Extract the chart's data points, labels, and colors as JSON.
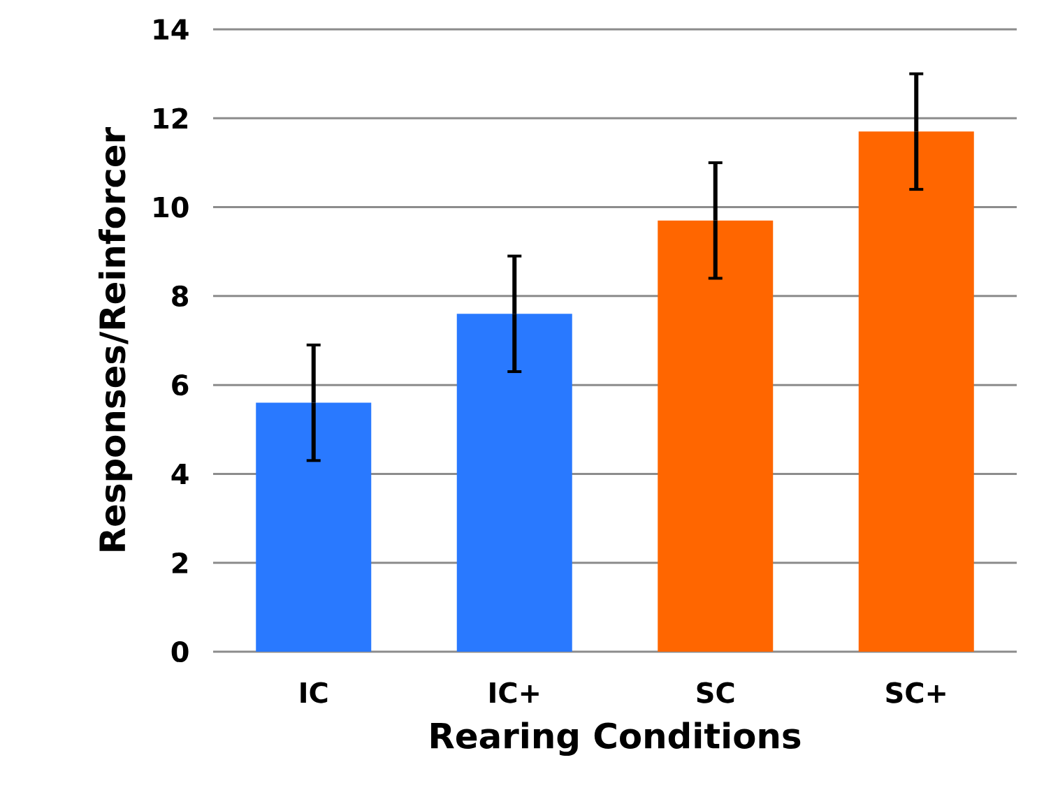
{
  "chart_data": {
    "type": "bar",
    "xlabel": "Rearing Conditions",
    "ylabel": "Responses/Reinforcer",
    "categories": [
      "IC",
      "IC+",
      "SC",
      "SC+"
    ],
    "values": [
      5.6,
      7.6,
      9.7,
      11.7
    ],
    "errors": [
      1.3,
      1.3,
      1.3,
      1.3
    ],
    "colors": [
      "#2979ff",
      "#2979ff",
      "#ff6600",
      "#ff6600"
    ],
    "ylim": [
      0,
      14
    ],
    "yticks": [
      0,
      2,
      4,
      6,
      8,
      10,
      12,
      14
    ],
    "grid": "y"
  }
}
